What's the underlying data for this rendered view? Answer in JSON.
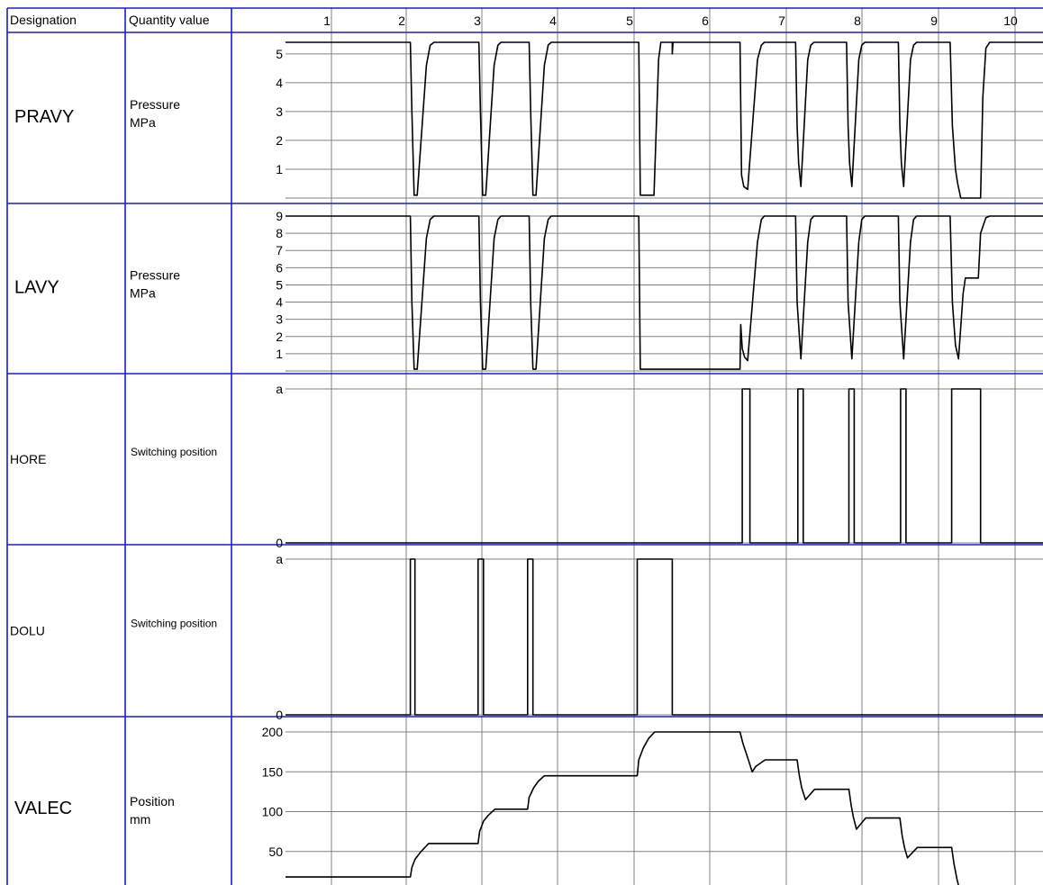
{
  "header": {
    "designation": "Designation",
    "quantity_value": "Quantity value"
  },
  "steps": [
    "1",
    "2",
    "3",
    "4",
    "5",
    "6",
    "7",
    "8",
    "9",
    "10"
  ],
  "colors": {
    "grid_frame": "#1a1adb",
    "grid_line": "#808080",
    "trace": "#000000"
  },
  "rows": [
    {
      "designation": "PRAVY",
      "quantity": [
        "Pressure",
        "MPa"
      ],
      "ticks": [
        "1",
        "2",
        "3",
        "4",
        "5"
      ],
      "range": [
        0,
        5.4
      ]
    },
    {
      "designation": "LAVY",
      "quantity": [
        "Pressure",
        "MPa"
      ],
      "ticks": [
        "1",
        "2",
        "3",
        "4",
        "5",
        "6",
        "7",
        "8",
        "9"
      ],
      "range": [
        0,
        9
      ]
    },
    {
      "designation": "HORE",
      "quantity": [
        "Switching position"
      ],
      "ticks": [
        "0",
        "a"
      ]
    },
    {
      "designation": "DOLU",
      "quantity": [
        "Switching position"
      ],
      "ticks": [
        "0",
        "a"
      ]
    },
    {
      "designation": "VALEC",
      "quantity": [
        "Position",
        "mm"
      ],
      "ticks": [
        "50",
        "100",
        "150",
        "200"
      ],
      "range": [
        0,
        200
      ]
    }
  ],
  "chart_data": {
    "type": "line",
    "title": "",
    "xlabel": "",
    "x_steps": [
      1,
      2,
      3,
      4,
      5,
      6,
      7,
      8,
      9,
      10
    ],
    "xlim": [
      0.4,
      10.35
    ],
    "series": [
      {
        "name": "PRAVY",
        "unit": "MPa",
        "ylim": [
          0,
          5.4
        ],
        "points": [
          [
            0.4,
            5.4
          ],
          [
            2.04,
            5.4
          ],
          [
            2.06,
            3.0
          ],
          [
            2.09,
            0.1
          ],
          [
            2.13,
            0.1
          ],
          [
            2.25,
            4.6
          ],
          [
            2.3,
            5.3
          ],
          [
            2.35,
            5.4
          ],
          [
            2.94,
            5.4
          ],
          [
            2.96,
            3.0
          ],
          [
            2.99,
            0.1
          ],
          [
            3.03,
            0.1
          ],
          [
            3.14,
            4.6
          ],
          [
            3.19,
            5.3
          ],
          [
            3.23,
            5.4
          ],
          [
            3.6,
            5.4
          ],
          [
            3.62,
            3.0
          ],
          [
            3.65,
            0.1
          ],
          [
            3.69,
            0.1
          ],
          [
            3.8,
            4.6
          ],
          [
            3.85,
            5.3
          ],
          [
            3.89,
            5.4
          ],
          [
            5.04,
            5.4
          ],
          [
            5.06,
            0.1
          ],
          [
            5.24,
            0.1
          ],
          [
            5.3,
            4.8
          ],
          [
            5.33,
            5.4
          ],
          [
            5.48,
            5.4
          ],
          [
            5.48,
            5.0
          ],
          [
            5.49,
            5.4
          ],
          [
            6.37,
            5.4
          ],
          [
            6.39,
            0.8
          ],
          [
            6.42,
            0.4
          ],
          [
            6.47,
            0.3
          ],
          [
            6.6,
            4.8
          ],
          [
            6.65,
            5.3
          ],
          [
            6.69,
            5.4
          ],
          [
            7.1,
            5.4
          ],
          [
            7.12,
            2.5
          ],
          [
            7.14,
            1.2
          ],
          [
            7.17,
            0.4
          ],
          [
            7.26,
            4.8
          ],
          [
            7.3,
            5.3
          ],
          [
            7.34,
            5.4
          ],
          [
            7.77,
            5.4
          ],
          [
            7.79,
            2.5
          ],
          [
            7.81,
            1.2
          ],
          [
            7.84,
            0.4
          ],
          [
            7.93,
            4.8
          ],
          [
            7.97,
            5.3
          ],
          [
            8.01,
            5.4
          ],
          [
            8.45,
            5.4
          ],
          [
            8.47,
            2.5
          ],
          [
            8.49,
            1.2
          ],
          [
            8.52,
            0.4
          ],
          [
            8.61,
            4.8
          ],
          [
            8.65,
            5.3
          ],
          [
            8.69,
            5.4
          ],
          [
            9.13,
            5.4
          ],
          [
            9.16,
            2.5
          ],
          [
            9.2,
            1.0
          ],
          [
            9.23,
            0.5
          ],
          [
            9.27,
            0.0
          ],
          [
            9.53,
            0.0
          ],
          [
            9.56,
            3.5
          ],
          [
            9.6,
            5.2
          ],
          [
            9.65,
            5.4
          ],
          [
            10.35,
            5.4
          ]
        ]
      },
      {
        "name": "LAVY",
        "unit": "MPa",
        "ylim": [
          0,
          9
        ],
        "points": [
          [
            0.4,
            9
          ],
          [
            2.04,
            9
          ],
          [
            2.06,
            4
          ],
          [
            2.09,
            0.1
          ],
          [
            2.13,
            0.1
          ],
          [
            2.25,
            7.7
          ],
          [
            2.3,
            8.8
          ],
          [
            2.35,
            9
          ],
          [
            2.94,
            9
          ],
          [
            2.96,
            4
          ],
          [
            2.99,
            0.1
          ],
          [
            3.03,
            0.1
          ],
          [
            3.14,
            7.7
          ],
          [
            3.19,
            8.8
          ],
          [
            3.23,
            9
          ],
          [
            3.6,
            9
          ],
          [
            3.62,
            4
          ],
          [
            3.65,
            0.1
          ],
          [
            3.69,
            0.1
          ],
          [
            3.8,
            7.7
          ],
          [
            3.85,
            8.8
          ],
          [
            3.89,
            9
          ],
          [
            5.04,
            9
          ],
          [
            5.06,
            0.1
          ],
          [
            6.37,
            0.1
          ],
          [
            6.38,
            2.7
          ],
          [
            6.4,
            1.3
          ],
          [
            6.43,
            0.8
          ],
          [
            6.47,
            0.6
          ],
          [
            6.6,
            7.5
          ],
          [
            6.65,
            8.8
          ],
          [
            6.69,
            9
          ],
          [
            7.1,
            9
          ],
          [
            7.12,
            4
          ],
          [
            7.17,
            0.7
          ],
          [
            7.26,
            7.5
          ],
          [
            7.3,
            8.8
          ],
          [
            7.34,
            9
          ],
          [
            7.77,
            9
          ],
          [
            7.79,
            4
          ],
          [
            7.84,
            0.7
          ],
          [
            7.93,
            7.5
          ],
          [
            7.97,
            8.8
          ],
          [
            8.01,
            9
          ],
          [
            8.45,
            9
          ],
          [
            8.47,
            4
          ],
          [
            8.52,
            0.7
          ],
          [
            8.61,
            7.5
          ],
          [
            8.65,
            8.8
          ],
          [
            8.69,
            9
          ],
          [
            9.13,
            9
          ],
          [
            9.16,
            4
          ],
          [
            9.2,
            1.5
          ],
          [
            9.24,
            0.7
          ],
          [
            9.3,
            4.5
          ],
          [
            9.33,
            5.4
          ],
          [
            9.5,
            5.4
          ],
          [
            9.53,
            8.0
          ],
          [
            9.6,
            8.9
          ],
          [
            9.65,
            9
          ],
          [
            10.35,
            9
          ]
        ]
      },
      {
        "name": "HORE",
        "unit": "",
        "levels": [
          "0",
          "a"
        ],
        "points": [
          [
            0.4,
            0
          ],
          [
            6.4,
            0
          ],
          [
            6.4,
            1
          ],
          [
            6.5,
            1
          ],
          [
            6.5,
            0
          ],
          [
            7.13,
            0
          ],
          [
            7.13,
            1
          ],
          [
            7.2,
            1
          ],
          [
            7.2,
            0
          ],
          [
            7.8,
            0
          ],
          [
            7.8,
            1
          ],
          [
            7.87,
            1
          ],
          [
            7.87,
            0
          ],
          [
            8.48,
            0
          ],
          [
            8.48,
            1
          ],
          [
            8.55,
            1
          ],
          [
            8.55,
            0
          ],
          [
            9.15,
            0
          ],
          [
            9.15,
            1
          ],
          [
            9.53,
            1
          ],
          [
            9.53,
            0
          ],
          [
            10.35,
            0
          ]
        ]
      },
      {
        "name": "DOLU",
        "unit": "",
        "levels": [
          "0",
          "a"
        ],
        "points": [
          [
            0.4,
            0
          ],
          [
            2.04,
            0
          ],
          [
            2.04,
            1
          ],
          [
            2.1,
            1
          ],
          [
            2.1,
            0
          ],
          [
            2.93,
            0
          ],
          [
            2.93,
            1
          ],
          [
            3.0,
            1
          ],
          [
            3.0,
            0
          ],
          [
            3.58,
            0
          ],
          [
            3.58,
            1
          ],
          [
            3.65,
            1
          ],
          [
            3.65,
            0
          ],
          [
            5.02,
            0
          ],
          [
            5.02,
            1
          ],
          [
            5.48,
            1
          ],
          [
            5.48,
            0
          ],
          [
            10.35,
            0
          ]
        ]
      },
      {
        "name": "VALEC",
        "unit": "mm",
        "ylim": [
          0,
          200
        ],
        "points": [
          [
            0.4,
            18
          ],
          [
            2.04,
            18
          ],
          [
            2.06,
            30
          ],
          [
            2.1,
            40
          ],
          [
            2.18,
            50
          ],
          [
            2.28,
            60
          ],
          [
            2.93,
            60
          ],
          [
            2.95,
            75
          ],
          [
            3.0,
            88
          ],
          [
            3.06,
            95
          ],
          [
            3.15,
            103
          ],
          [
            3.58,
            103
          ],
          [
            3.6,
            118
          ],
          [
            3.66,
            130
          ],
          [
            3.72,
            138
          ],
          [
            3.8,
            145
          ],
          [
            5.02,
            145
          ],
          [
            5.04,
            165
          ],
          [
            5.1,
            180
          ],
          [
            5.17,
            192
          ],
          [
            5.25,
            200
          ],
          [
            6.37,
            200
          ],
          [
            6.41,
            185
          ],
          [
            6.48,
            165
          ],
          [
            6.53,
            150
          ],
          [
            6.58,
            157
          ],
          [
            6.7,
            165
          ],
          [
            7.12,
            165
          ],
          [
            7.15,
            145
          ],
          [
            7.18,
            130
          ],
          [
            7.23,
            115
          ],
          [
            7.35,
            128
          ],
          [
            7.8,
            128
          ],
          [
            7.83,
            108
          ],
          [
            7.86,
            93
          ],
          [
            7.9,
            78
          ],
          [
            8.02,
            92
          ],
          [
            8.47,
            92
          ],
          [
            8.5,
            70
          ],
          [
            8.53,
            55
          ],
          [
            8.57,
            42
          ],
          [
            8.7,
            55
          ],
          [
            9.15,
            55
          ],
          [
            9.18,
            35
          ],
          [
            9.22,
            15
          ],
          [
            9.26,
            0
          ],
          [
            9.6,
            0
          ],
          [
            9.65,
            3
          ],
          [
            10.35,
            3
          ]
        ]
      }
    ]
  }
}
